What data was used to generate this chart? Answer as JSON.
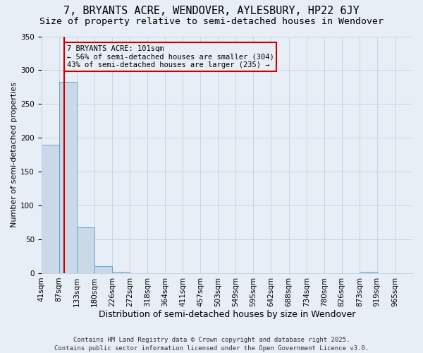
{
  "title": "7, BRYANTS ACRE, WENDOVER, AYLESBURY, HP22 6JY",
  "subtitle": "Size of property relative to semi-detached houses in Wendover",
  "xlabel": "Distribution of semi-detached houses by size in Wendover",
  "ylabel": "Number of semi-detached properties",
  "categories": [
    "41sqm",
    "87sqm",
    "133sqm",
    "180sqm",
    "226sqm",
    "272sqm",
    "318sqm",
    "364sqm",
    "411sqm",
    "457sqm",
    "503sqm",
    "549sqm",
    "595sqm",
    "642sqm",
    "688sqm",
    "734sqm",
    "780sqm",
    "826sqm",
    "873sqm",
    "919sqm",
    "965sqm"
  ],
  "bar_heights": [
    190,
    283,
    68,
    10,
    2,
    0,
    0,
    0,
    0,
    0,
    0,
    0,
    0,
    0,
    0,
    0,
    0,
    0,
    2,
    0,
    0
  ],
  "bar_color": "#c9d9e8",
  "bar_edge_color": "#5b9bd5",
  "grid_color": "#c8d4e3",
  "background_color": "#e8eef5",
  "vline_color": "#cc0000",
  "annotation_text": "7 BRYANTS ACRE: 101sqm\n← 56% of semi-detached houses are smaller (304)\n43% of semi-detached houses are larger (235) →",
  "annotation_box_facecolor": "#e8eef5",
  "annotation_box_edgecolor": "#cc0000",
  "ylim": [
    0,
    350
  ],
  "yticks": [
    0,
    50,
    100,
    150,
    200,
    250,
    300,
    350
  ],
  "footer": "Contains HM Land Registry data © Crown copyright and database right 2025.\nContains public sector information licensed under the Open Government Licence v3.0.",
  "title_fontsize": 11,
  "subtitle_fontsize": 9.5,
  "xlabel_fontsize": 9,
  "ylabel_fontsize": 8,
  "tick_fontsize": 7.5,
  "annotation_fontsize": 7.5,
  "footer_fontsize": 6.5
}
